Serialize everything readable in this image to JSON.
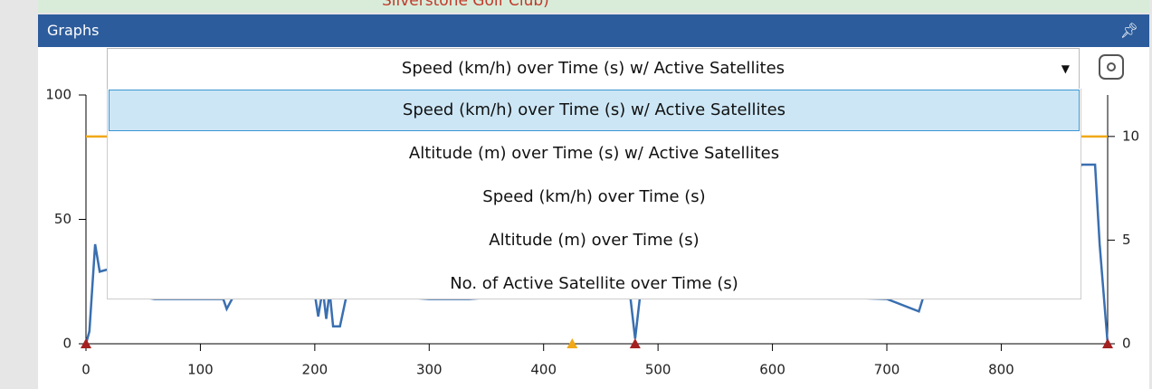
{
  "map": {
    "label": "Silverstone Golf Club)"
  },
  "panel": {
    "title": "Graphs"
  },
  "dropdown": {
    "selected": "Speed (km/h) over Time (s) w/ Active Satellites",
    "selected_index": 0,
    "options": [
      "Speed (km/h) over Time (s) w/ Active Satellites",
      "Altitude (m) over Time (s) w/ Active Satellites",
      "Speed (km/h) over Time (s)",
      "Altitude (m) over Time (s)",
      "No. of Active Satellite over Time (s)"
    ]
  },
  "chart_data": {
    "type": "line",
    "xlim": [
      0,
      893
    ],
    "xticks": [
      0,
      100,
      200,
      300,
      400,
      500,
      600,
      700,
      800
    ],
    "ylim": [
      0,
      100
    ],
    "yticks": [
      0,
      50,
      100
    ],
    "y2lim": [
      0,
      12
    ],
    "y2ticks": [
      0,
      5,
      10
    ],
    "series": [
      {
        "name": "Speed",
        "color": "#3a6fb0",
        "x": [
          0,
          3,
          8,
          12,
          20,
          30,
          60,
          120,
          123,
          130,
          200,
          203,
          207,
          210,
          213,
          216,
          222,
          228,
          300,
          335,
          400,
          470,
          476,
          480,
          484,
          490,
          560,
          700,
          728,
          732,
          740,
          800,
          850,
          870,
          882,
          886,
          893
        ],
        "values": [
          0,
          5,
          40,
          29,
          30,
          20,
          18,
          18,
          14,
          20,
          20,
          11,
          22,
          10,
          21,
          7,
          7,
          20,
          18,
          18,
          20,
          20,
          18,
          2,
          18,
          22,
          20,
          18,
          13,
          19,
          20,
          20,
          55,
          72,
          72,
          40,
          0
        ]
      },
      {
        "name": "Active Satellites",
        "color": "#f0a818",
        "axis": "y2",
        "x": [
          0,
          893
        ],
        "values": [
          10,
          10
        ]
      }
    ],
    "markers": {
      "x": [
        0,
        425,
        480,
        893
      ],
      "colors": [
        "#a52020",
        "#f0a818",
        "#a52020",
        "#a52020"
      ]
    }
  }
}
